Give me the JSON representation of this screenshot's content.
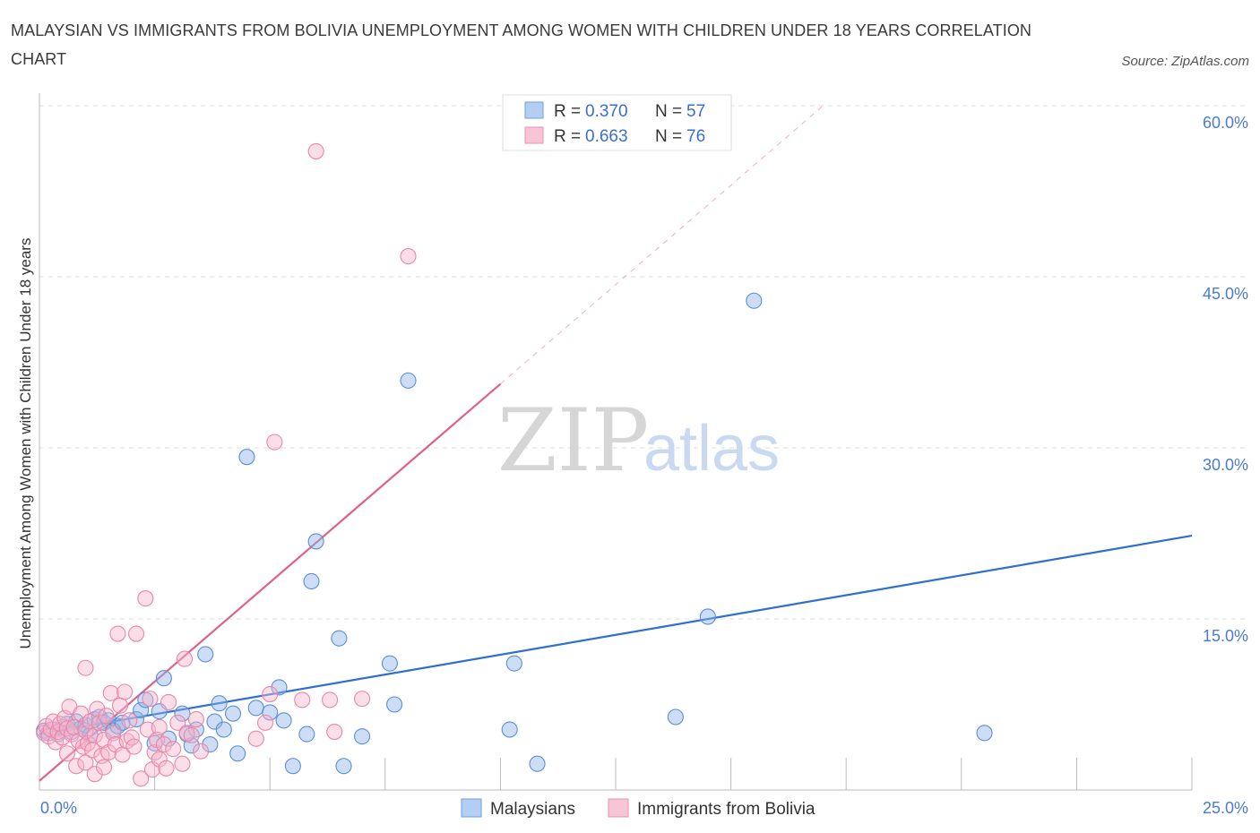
{
  "title": "MALAYSIAN VS IMMIGRANTS FROM BOLIVIA UNEMPLOYMENT AMONG WOMEN WITH CHILDREN UNDER 18 YEARS CORRELATION CHART",
  "source": "Source: ZipAtlas.com",
  "watermark": {
    "zip": "ZIP",
    "atlas": "atlas"
  },
  "legend_top": [
    {
      "r_label": "R =",
      "r_value": "0.370",
      "n_label": "N =",
      "n_value": "57"
    },
    {
      "r_label": "R =",
      "r_value": "0.663",
      "n_label": "N =",
      "n_value": "76"
    }
  ],
  "chart_data": {
    "type": "scatter",
    "title": "MALAYSIAN VS IMMIGRANTS FROM BOLIVIA UNEMPLOYMENT AMONG WOMEN WITH CHILDREN UNDER 18 YEARS CORRELATION CHART",
    "xlabel": "",
    "ylabel": "Unemployment Among Women with Children Under 18 years",
    "xlim": [
      0,
      25
    ],
    "ylim": [
      0,
      60
    ],
    "x_tick_labels": [
      "0.0%",
      "25.0%"
    ],
    "y_tick_labels": [
      "15.0%",
      "30.0%",
      "45.0%",
      "60.0%"
    ],
    "y_ticks": [
      15,
      30,
      45,
      60
    ],
    "grid": true,
    "legend_position": "bottom",
    "series": [
      {
        "name": "Malaysians",
        "color": "#8fb4e8",
        "stroke": "#5b8fd8",
        "trend": {
          "x0": 0,
          "y0": 4.9,
          "x1": 25,
          "y1": 22.3,
          "color": "#2f6fd0"
        },
        "points": [
          [
            0.1,
            5.2
          ],
          [
            0.2,
            5.0
          ],
          [
            0.3,
            5.3
          ],
          [
            0.4,
            4.9
          ],
          [
            0.5,
            5.5
          ],
          [
            0.6,
            5.8
          ],
          [
            0.7,
            5.1
          ],
          [
            0.8,
            6.0
          ],
          [
            0.9,
            5.4
          ],
          [
            1.0,
            5.7
          ],
          [
            1.1,
            4.8
          ],
          [
            1.2,
            6.2
          ],
          [
            1.3,
            6.4
          ],
          [
            1.4,
            5.9
          ],
          [
            1.5,
            6.1
          ],
          [
            1.6,
            5.2
          ],
          [
            1.7,
            5.6
          ],
          [
            1.8,
            5.9
          ],
          [
            2.1,
            6.2
          ],
          [
            2.2,
            7.0
          ],
          [
            2.3,
            7.9
          ],
          [
            2.5,
            4.1
          ],
          [
            2.6,
            6.9
          ],
          [
            2.7,
            9.8
          ],
          [
            2.8,
            4.5
          ],
          [
            3.1,
            6.7
          ],
          [
            3.2,
            4.9
          ],
          [
            3.3,
            3.9
          ],
          [
            3.4,
            5.3
          ],
          [
            3.6,
            11.9
          ],
          [
            3.7,
            4.0
          ],
          [
            3.8,
            6.0
          ],
          [
            3.9,
            7.6
          ],
          [
            4.0,
            5.3
          ],
          [
            4.2,
            6.7
          ],
          [
            4.3,
            3.2
          ],
          [
            4.5,
            29.2
          ],
          [
            4.7,
            7.2
          ],
          [
            5.0,
            6.8
          ],
          [
            5.2,
            9.0
          ],
          [
            5.3,
            6.1
          ],
          [
            5.5,
            2.1
          ],
          [
            5.8,
            4.9
          ],
          [
            5.9,
            18.3
          ],
          [
            6.0,
            21.8
          ],
          [
            6.5,
            13.3
          ],
          [
            6.6,
            2.1
          ],
          [
            7.0,
            4.7
          ],
          [
            7.6,
            11.1
          ],
          [
            7.7,
            7.5
          ],
          [
            8.0,
            35.9
          ],
          [
            10.2,
            5.3
          ],
          [
            10.3,
            11.1
          ],
          [
            10.8,
            2.3
          ],
          [
            13.8,
            6.4
          ],
          [
            14.5,
            15.2
          ],
          [
            15.5,
            42.9
          ],
          [
            20.5,
            5.0
          ]
        ]
      },
      {
        "name": "Immigrants from Bolivia",
        "color": "#f6b6cb",
        "stroke": "#ea86a8",
        "trend": {
          "x0": 0,
          "y0": 0.8,
          "x1": 10.0,
          "y1": 35.6,
          "color": "#e0608c"
        },
        "trend_dashed": {
          "x0": 10.0,
          "y0": 35.6,
          "x1": 17.0,
          "y1": 60.0
        },
        "points": [
          [
            0.1,
            5.0
          ],
          [
            0.15,
            5.6
          ],
          [
            0.2,
            4.7
          ],
          [
            0.25,
            5.3
          ],
          [
            0.3,
            6.0
          ],
          [
            0.35,
            4.2
          ],
          [
            0.4,
            5.1
          ],
          [
            0.45,
            5.8
          ],
          [
            0.5,
            4.6
          ],
          [
            0.55,
            6.3
          ],
          [
            0.6,
            5.4
          ],
          [
            0.6,
            3.2
          ],
          [
            0.65,
            7.3
          ],
          [
            0.7,
            4.9
          ],
          [
            0.75,
            5.5
          ],
          [
            0.8,
            2.1
          ],
          [
            0.85,
            4.3
          ],
          [
            0.9,
            6.7
          ],
          [
            0.95,
            3.8
          ],
          [
            1.0,
            5.2
          ],
          [
            1.0,
            2.4
          ],
          [
            1.05,
            4.1
          ],
          [
            1.1,
            6.0
          ],
          [
            1.15,
            3.5
          ],
          [
            1.2,
            4.8
          ],
          [
            1.2,
            1.4
          ],
          [
            1.25,
            7.1
          ],
          [
            1.3,
            5.9
          ],
          [
            1.35,
            3.0
          ],
          [
            1.4,
            4.4
          ],
          [
            1.4,
            2.0
          ],
          [
            1.45,
            6.5
          ],
          [
            1.5,
            3.3
          ],
          [
            1.55,
            8.5
          ],
          [
            1.6,
            5.0
          ],
          [
            1.65,
            4.0
          ],
          [
            1.7,
            13.7
          ],
          [
            1.75,
            7.4
          ],
          [
            1.8,
            3.1
          ],
          [
            1.85,
            8.6
          ],
          [
            1.9,
            4.3
          ],
          [
            1.95,
            6.1
          ],
          [
            2.0,
            4.6
          ],
          [
            2.05,
            3.8
          ],
          [
            2.1,
            13.7
          ],
          [
            2.2,
            1.0
          ],
          [
            2.3,
            16.8
          ],
          [
            2.35,
            5.3
          ],
          [
            2.4,
            8.0
          ],
          [
            2.45,
            1.8
          ],
          [
            2.5,
            3.3
          ],
          [
            2.55,
            4.4
          ],
          [
            2.6,
            2.7
          ],
          [
            2.7,
            4.0
          ],
          [
            2.75,
            1.9
          ],
          [
            2.8,
            7.7
          ],
          [
            2.9,
            3.6
          ],
          [
            3.0,
            5.9
          ],
          [
            3.1,
            2.3
          ],
          [
            3.2,
            5.0
          ],
          [
            3.15,
            11.5
          ],
          [
            3.3,
            4.8
          ],
          [
            3.4,
            6.2
          ],
          [
            3.5,
            3.4
          ],
          [
            4.7,
            4.5
          ],
          [
            4.9,
            5.9
          ],
          [
            5.0,
            8.4
          ],
          [
            5.1,
            30.5
          ],
          [
            5.7,
            7.9
          ],
          [
            6.0,
            56.0
          ],
          [
            6.3,
            7.9
          ],
          [
            6.4,
            5.1
          ],
          [
            7.0,
            8.0
          ],
          [
            8.0,
            46.8
          ],
          [
            2.6,
            5.5
          ],
          [
            1.0,
            10.7
          ]
        ]
      }
    ]
  },
  "legend_bottom": [
    "Malaysians",
    "Immigrants from Bolivia"
  ]
}
